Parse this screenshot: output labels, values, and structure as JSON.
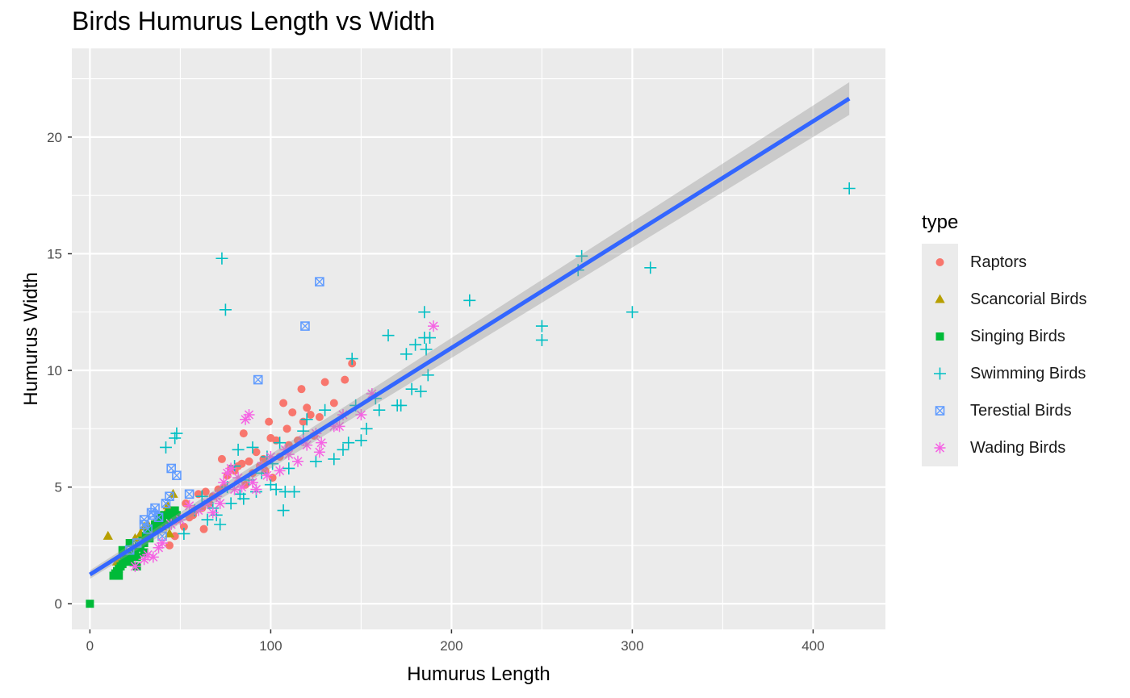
{
  "chart_data": {
    "type": "scatter",
    "title": "Birds Humurus Length vs Width",
    "xlabel": "Humurus Length",
    "ylabel": "Humurus Width",
    "xlim": [
      -10,
      440
    ],
    "ylim": [
      -1.1,
      23.8
    ],
    "xticks": [
      0,
      100,
      200,
      300,
      400
    ],
    "yticks": [
      0,
      5,
      10,
      15,
      20
    ],
    "grid": true,
    "legend_title": "type",
    "legend_position": "right",
    "trend_line": {
      "method": "linear",
      "start": [
        0,
        1.25
      ],
      "end": [
        420,
        21.65
      ],
      "band_halfwidth_start": 0.18,
      "band_halfwidth_end": 0.7,
      "color": "#3366ff"
    },
    "series": [
      {
        "name": "Raptors",
        "color": "#f8766d",
        "shape": "circle",
        "points": [
          [
            44,
            2.5
          ],
          [
            47,
            2.9
          ],
          [
            52,
            3.3
          ],
          [
            55,
            3.7
          ],
          [
            58,
            4.0
          ],
          [
            60,
            4.7
          ],
          [
            62,
            4.1
          ],
          [
            64,
            4.8
          ],
          [
            66,
            4.3
          ],
          [
            68,
            4.6
          ],
          [
            71,
            4.9
          ],
          [
            73,
            6.2
          ],
          [
            74,
            5.0
          ],
          [
            76,
            5.5
          ],
          [
            78,
            5.8
          ],
          [
            80,
            5.7
          ],
          [
            82,
            5.9
          ],
          [
            84,
            6.0
          ],
          [
            85,
            7.3
          ],
          [
            86,
            5.1
          ],
          [
            88,
            6.1
          ],
          [
            90,
            5.6
          ],
          [
            92,
            6.5
          ],
          [
            94,
            5.9
          ],
          [
            96,
            6.2
          ],
          [
            97,
            5.7
          ],
          [
            99,
            7.8
          ],
          [
            100,
            7.1
          ],
          [
            101,
            5.4
          ],
          [
            103,
            7.0
          ],
          [
            105,
            6.3
          ],
          [
            107,
            8.6
          ],
          [
            109,
            7.5
          ],
          [
            110,
            6.8
          ],
          [
            112,
            8.2
          ],
          [
            115,
            7.0
          ],
          [
            117,
            9.2
          ],
          [
            118,
            7.8
          ],
          [
            120,
            8.4
          ],
          [
            122,
            8.1
          ],
          [
            124,
            7.2
          ],
          [
            127,
            8.0
          ],
          [
            130,
            9.5
          ],
          [
            135,
            8.6
          ],
          [
            141,
            9.6
          ],
          [
            145,
            10.3
          ],
          [
            48,
            3.6
          ],
          [
            53,
            4.3
          ],
          [
            57,
            3.8
          ],
          [
            63,
            3.2
          ]
        ]
      },
      {
        "name": "Scancorial Birds",
        "color": "#b79f00",
        "shape": "triangle",
        "points": [
          [
            10,
            2.9
          ],
          [
            15,
            1.8
          ],
          [
            18,
            2.0
          ],
          [
            20,
            2.2
          ],
          [
            22,
            2.1
          ],
          [
            24,
            2.4
          ],
          [
            25,
            2.8
          ],
          [
            27,
            2.6
          ],
          [
            28,
            3.0
          ],
          [
            30,
            3.3
          ],
          [
            32,
            3.4
          ],
          [
            34,
            3.2
          ],
          [
            36,
            3.5
          ],
          [
            38,
            3.7
          ],
          [
            40,
            3.3
          ],
          [
            42,
            3.9
          ],
          [
            43,
            4.2
          ],
          [
            44,
            3.0
          ],
          [
            46,
            4.7
          ],
          [
            48,
            3.8
          ]
        ]
      },
      {
        "name": "Singing Birds",
        "color": "#00ba38",
        "shape": "square",
        "points": [
          [
            0,
            0.0
          ],
          [
            13,
            1.2
          ],
          [
            14,
            1.3
          ],
          [
            15,
            1.4
          ],
          [
            16,
            1.5
          ],
          [
            17,
            1.6
          ],
          [
            18,
            1.7
          ],
          [
            19,
            1.8
          ],
          [
            20,
            1.9
          ],
          [
            21,
            2.0
          ],
          [
            22,
            1.8
          ],
          [
            23,
            2.1
          ],
          [
            24,
            2.2
          ],
          [
            25,
            2.3
          ],
          [
            26,
            2.0
          ],
          [
            27,
            2.5
          ],
          [
            28,
            2.4
          ],
          [
            29,
            2.7
          ],
          [
            30,
            2.6
          ],
          [
            31,
            2.9
          ],
          [
            32,
            3.0
          ],
          [
            33,
            2.8
          ],
          [
            34,
            3.1
          ],
          [
            35,
            3.2
          ],
          [
            36,
            3.4
          ],
          [
            37,
            3.3
          ],
          [
            38,
            3.6
          ],
          [
            39,
            3.5
          ],
          [
            40,
            3.7
          ],
          [
            41,
            3.8
          ],
          [
            42,
            3.4
          ],
          [
            44,
            3.9
          ],
          [
            45,
            3.6
          ],
          [
            47,
            4.0
          ],
          [
            48,
            3.8
          ],
          [
            16,
            1.2
          ],
          [
            18,
            2.3
          ],
          [
            22,
            2.6
          ],
          [
            26,
            1.6
          ],
          [
            30,
            2.2
          ]
        ]
      },
      {
        "name": "Swimming Birds",
        "color": "#00bfc4",
        "shape": "plus",
        "points": [
          [
            42,
            6.7
          ],
          [
            47,
            7.1
          ],
          [
            48,
            7.3
          ],
          [
            52,
            3.0
          ],
          [
            58,
            4.0
          ],
          [
            62,
            4.6
          ],
          [
            65,
            3.6
          ],
          [
            68,
            4.1
          ],
          [
            70,
            3.8
          ],
          [
            72,
            3.4
          ],
          [
            73,
            14.8
          ],
          [
            75,
            12.6
          ],
          [
            76,
            5.0
          ],
          [
            78,
            4.3
          ],
          [
            80,
            5.9
          ],
          [
            82,
            6.6
          ],
          [
            83,
            4.7
          ],
          [
            85,
            4.5
          ],
          [
            88,
            5.3
          ],
          [
            90,
            6.7
          ],
          [
            92,
            4.8
          ],
          [
            95,
            5.6
          ],
          [
            98,
            6.3
          ],
          [
            100,
            5.1
          ],
          [
            101,
            6.0
          ],
          [
            103,
            4.9
          ],
          [
            105,
            6.9
          ],
          [
            107,
            4.0
          ],
          [
            108,
            4.8
          ],
          [
            110,
            5.8
          ],
          [
            113,
            4.8
          ],
          [
            118,
            7.4
          ],
          [
            120,
            7.9
          ],
          [
            125,
            6.1
          ],
          [
            130,
            8.3
          ],
          [
            135,
            6.2
          ],
          [
            140,
            6.6
          ],
          [
            143,
            6.9
          ],
          [
            145,
            10.5
          ],
          [
            147,
            8.5
          ],
          [
            150,
            7.0
          ],
          [
            153,
            7.5
          ],
          [
            158,
            8.8
          ],
          [
            160,
            8.3
          ],
          [
            165,
            11.5
          ],
          [
            170,
            8.5
          ],
          [
            172,
            8.5
          ],
          [
            175,
            10.7
          ],
          [
            178,
            9.2
          ],
          [
            180,
            11.1
          ],
          [
            183,
            9.1
          ],
          [
            185,
            11.4
          ],
          [
            185,
            12.5
          ],
          [
            186,
            10.9
          ],
          [
            187,
            9.8
          ],
          [
            188,
            11.4
          ],
          [
            210,
            13.0
          ],
          [
            250,
            11.9
          ],
          [
            250,
            11.3
          ],
          [
            270,
            14.3
          ],
          [
            272,
            14.9
          ],
          [
            300,
            12.5
          ],
          [
            310,
            14.4
          ],
          [
            420,
            17.8
          ]
        ]
      },
      {
        "name": "Terestial Birds",
        "color": "#619cff",
        "shape": "square-cross",
        "points": [
          [
            22,
            2.3
          ],
          [
            26,
            2.6
          ],
          [
            30,
            3.6
          ],
          [
            32,
            3.2
          ],
          [
            34,
            3.9
          ],
          [
            36,
            4.1
          ],
          [
            38,
            3.7
          ],
          [
            40,
            2.9
          ],
          [
            42,
            4.3
          ],
          [
            44,
            4.6
          ],
          [
            45,
            5.8
          ],
          [
            48,
            5.5
          ],
          [
            55,
            4.7
          ],
          [
            93,
            9.6
          ],
          [
            119,
            11.9
          ],
          [
            127,
            13.8
          ],
          [
            30,
            3.4
          ],
          [
            35,
            3.8
          ]
        ]
      },
      {
        "name": "Wading Birds",
        "color": "#f564e3",
        "shape": "asterisk",
        "points": [
          [
            25,
            1.6
          ],
          [
            30,
            1.9
          ],
          [
            32,
            2.1
          ],
          [
            35,
            2.0
          ],
          [
            38,
            2.4
          ],
          [
            40,
            2.6
          ],
          [
            45,
            3.4
          ],
          [
            50,
            3.6
          ],
          [
            55,
            4.2
          ],
          [
            60,
            4.0
          ],
          [
            65,
            4.3
          ],
          [
            68,
            3.9
          ],
          [
            70,
            4.6
          ],
          [
            72,
            4.3
          ],
          [
            74,
            5.2
          ],
          [
            76,
            5.6
          ],
          [
            78,
            5.8
          ],
          [
            80,
            4.9
          ],
          [
            82,
            5.4
          ],
          [
            84,
            5.0
          ],
          [
            86,
            7.9
          ],
          [
            88,
            8.1
          ],
          [
            90,
            5.2
          ],
          [
            92,
            4.9
          ],
          [
            95,
            5.9
          ],
          [
            98,
            5.5
          ],
          [
            100,
            6.3
          ],
          [
            105,
            5.7
          ],
          [
            108,
            6.6
          ],
          [
            110,
            6.4
          ],
          [
            115,
            6.1
          ],
          [
            118,
            7.0
          ],
          [
            120,
            6.8
          ],
          [
            125,
            7.3
          ],
          [
            127,
            6.5
          ],
          [
            128,
            6.9
          ],
          [
            135,
            7.6
          ],
          [
            138,
            7.6
          ],
          [
            140,
            8.1
          ],
          [
            150,
            8.1
          ],
          [
            156,
            9.0
          ],
          [
            190,
            11.9
          ]
        ]
      }
    ]
  }
}
